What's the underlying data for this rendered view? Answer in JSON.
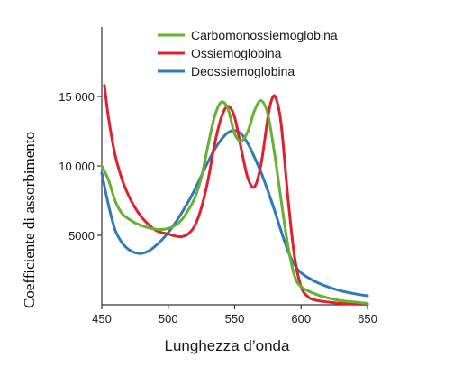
{
  "chart_data": {
    "type": "line",
    "title": "",
    "xlabel": "Lunghezza d’onda",
    "ylabel": "Coefficiente di assorbimento",
    "xlim": [
      450,
      650
    ],
    "ylim": [
      0,
      20000
    ],
    "grid": false,
    "legend_position": "top-right",
    "x_ticks": [
      {
        "value": 450,
        "label": "450"
      },
      {
        "value": 500,
        "label": "500"
      },
      {
        "value": 550,
        "label": "550"
      },
      {
        "value": 600,
        "label": "600"
      },
      {
        "value": 650,
        "label": "650"
      }
    ],
    "y_ticks": [
      {
        "value": 5000,
        "label": "5000"
      },
      {
        "value": 10000,
        "label": "10 000"
      },
      {
        "value": 15000,
        "label": "15 000"
      }
    ],
    "series": [
      {
        "name": "Carbomonossiemoglobina",
        "color": "#66b032",
        "x": [
          450,
          455,
          460,
          465,
          470,
          475,
          480,
          485,
          490,
          495,
          500,
          505,
          510,
          515,
          520,
          525,
          530,
          535,
          540,
          545,
          550,
          555,
          560,
          565,
          570,
          575,
          580,
          585,
          590,
          595,
          600,
          610,
          620,
          630,
          640,
          650
        ],
        "y": [
          10000,
          9000,
          7500,
          6600,
          6200,
          5900,
          5700,
          5550,
          5450,
          5420,
          5500,
          5700,
          6100,
          6800,
          7700,
          9200,
          11500,
          13600,
          14600,
          14100,
          12300,
          11800,
          12500,
          14000,
          14700,
          13700,
          10900,
          7500,
          4300,
          2100,
          1300,
          800,
          500,
          300,
          200,
          100
        ]
      },
      {
        "name": "Ossiemoglobina",
        "color": "#e0202e",
        "x": [
          452,
          455,
          460,
          465,
          470,
          475,
          480,
          485,
          490,
          495,
          500,
          505,
          510,
          515,
          520,
          525,
          530,
          535,
          540,
          545,
          550,
          555,
          560,
          565,
          570,
          575,
          578,
          581,
          585,
          590,
          595,
          600,
          605,
          610,
          620,
          630,
          640,
          650
        ],
        "y": [
          15800,
          13500,
          10800,
          9100,
          7900,
          7000,
          6300,
          5800,
          5400,
          5200,
          5100,
          4950,
          4900,
          5100,
          5700,
          7000,
          9000,
          11600,
          13500,
          14300,
          13500,
          11200,
          9100,
          8500,
          10200,
          13500,
          14800,
          14900,
          13000,
          7800,
          3500,
          1300,
          600,
          350,
          200,
          100,
          60,
          30
        ]
      },
      {
        "name": "Deossiemoglobina",
        "color": "#2f7bb8",
        "x": [
          450,
          455,
          460,
          465,
          470,
          475,
          480,
          485,
          490,
          495,
          500,
          505,
          510,
          515,
          520,
          525,
          530,
          535,
          540,
          545,
          550,
          555,
          560,
          565,
          570,
          575,
          580,
          585,
          590,
          595,
          600,
          610,
          620,
          630,
          640,
          650
        ],
        "y": [
          9500,
          7200,
          5400,
          4500,
          4000,
          3750,
          3700,
          3850,
          4200,
          4650,
          5200,
          5850,
          6600,
          7400,
          8300,
          9300,
          10300,
          11200,
          11900,
          12400,
          12550,
          12300,
          11600,
          10600,
          9500,
          8200,
          6800,
          5300,
          3900,
          2900,
          2300,
          1700,
          1300,
          1000,
          800,
          650
        ]
      }
    ]
  }
}
